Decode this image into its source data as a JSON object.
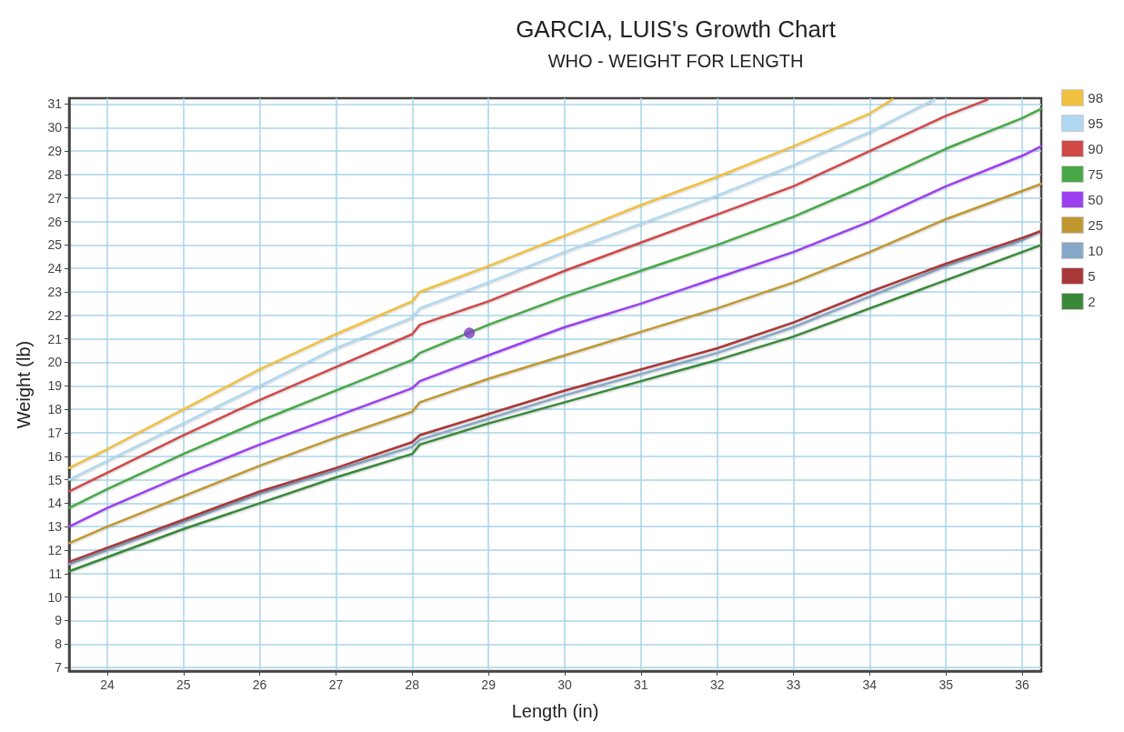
{
  "chart_data": {
    "type": "line",
    "title": "GARCIA, LUIS's Growth Chart",
    "subtitle": "WHO - WEIGHT FOR LENGTH",
    "xlabel": "Length (in)",
    "ylabel": "Weight (lb)",
    "xlim": [
      23.5,
      36.25
    ],
    "ylim": [
      6.85,
      31.25
    ],
    "xticks": [
      24,
      25,
      26,
      27,
      28,
      29,
      30,
      31,
      32,
      33,
      34,
      35,
      36
    ],
    "yticks": [
      7,
      8,
      9,
      10,
      11,
      12,
      13,
      14,
      15,
      16,
      17,
      18,
      19,
      20,
      21,
      22,
      23,
      24,
      25,
      26,
      27,
      28,
      29,
      30,
      31
    ],
    "grid": true,
    "legend": "right",
    "marker": "none",
    "line_style": "solid",
    "series": [
      {
        "name": "98",
        "color": "#f0c040",
        "x": [
          23.5,
          24,
          25,
          26,
          27,
          28,
          28.1,
          29,
          30,
          31,
          32,
          33,
          34,
          34.3
        ],
        "values": [
          15.5,
          16.3,
          18.0,
          19.7,
          21.2,
          22.6,
          23.0,
          24.1,
          25.4,
          26.7,
          27.9,
          29.2,
          30.6,
          31.2
        ]
      },
      {
        "name": "95",
        "color": "#b0d8f0",
        "x": [
          23.5,
          24,
          25,
          26,
          27,
          28,
          28.1,
          29,
          30,
          31,
          32,
          33,
          34,
          34.85
        ],
        "values": [
          15.0,
          15.8,
          17.4,
          19.0,
          20.6,
          21.9,
          22.3,
          23.4,
          24.7,
          25.9,
          27.1,
          28.4,
          29.8,
          31.2
        ]
      },
      {
        "name": "90",
        "color": "#d04848",
        "x": [
          23.5,
          24,
          25,
          26,
          27,
          28,
          28.1,
          29,
          30,
          31,
          32,
          33,
          34,
          35,
          35.55
        ],
        "values": [
          14.5,
          15.3,
          16.9,
          18.4,
          19.8,
          21.2,
          21.6,
          22.6,
          23.9,
          25.1,
          26.3,
          27.5,
          29.0,
          30.5,
          31.2
        ]
      },
      {
        "name": "75",
        "color": "#48a848",
        "x": [
          23.5,
          24,
          25,
          26,
          27,
          28,
          28.1,
          29,
          30,
          31,
          32,
          33,
          34,
          35,
          36,
          36.25
        ],
        "values": [
          13.8,
          14.6,
          16.1,
          17.5,
          18.8,
          20.1,
          20.4,
          21.6,
          22.8,
          23.9,
          25.0,
          26.2,
          27.6,
          29.1,
          30.4,
          30.8
        ]
      },
      {
        "name": "50",
        "color": "#9a40f0",
        "x": [
          23.5,
          24,
          25,
          26,
          27,
          28,
          28.1,
          29,
          30,
          31,
          32,
          33,
          34,
          35,
          36,
          36.25
        ],
        "values": [
          13.0,
          13.8,
          15.2,
          16.5,
          17.7,
          18.9,
          19.2,
          20.3,
          21.5,
          22.5,
          23.6,
          24.7,
          26.0,
          27.5,
          28.8,
          29.2
        ]
      },
      {
        "name": "25",
        "color": "#c09830",
        "x": [
          23.5,
          24,
          25,
          26,
          27,
          28,
          28.1,
          29,
          30,
          31,
          32,
          33,
          34,
          35,
          36,
          36.25
        ],
        "values": [
          12.3,
          13.0,
          14.3,
          15.6,
          16.8,
          17.9,
          18.3,
          19.3,
          20.3,
          21.3,
          22.3,
          23.4,
          24.7,
          26.1,
          27.3,
          27.6
        ]
      },
      {
        "name": "10",
        "color": "#88a8c8",
        "x": [
          23.5,
          24,
          25,
          26,
          27,
          28,
          28.1,
          29,
          30,
          31,
          32,
          33,
          34,
          35,
          36,
          36.25
        ],
        "values": [
          11.4,
          12.0,
          13.2,
          14.4,
          15.4,
          16.4,
          16.7,
          17.6,
          18.6,
          19.5,
          20.4,
          21.5,
          22.8,
          24.1,
          25.2,
          25.6
        ]
      },
      {
        "name": "5",
        "color": "#a83838",
        "x": [
          23.5,
          24,
          25,
          26,
          27,
          28,
          28.1,
          29,
          30,
          31,
          32,
          33,
          34,
          35,
          36,
          36.25
        ],
        "values": [
          11.5,
          12.1,
          13.3,
          14.5,
          15.5,
          16.6,
          16.9,
          17.8,
          18.8,
          19.7,
          20.6,
          21.7,
          23.0,
          24.2,
          25.3,
          25.6
        ]
      },
      {
        "name": "2",
        "color": "#388838",
        "x": [
          23.5,
          24,
          25,
          26,
          27,
          28,
          28.1,
          29,
          30,
          31,
          32,
          33,
          34,
          35,
          36,
          36.25
        ],
        "values": [
          11.1,
          11.7,
          12.9,
          14.0,
          15.1,
          16.1,
          16.5,
          17.4,
          18.3,
          19.2,
          20.1,
          21.1,
          22.3,
          23.5,
          24.7,
          25.0
        ]
      },
      {
        "type": "scatter",
        "color": "#7b3fc4",
        "marker": "circle",
        "x": [
          28.75
        ],
        "values": [
          21.25
        ]
      }
    ]
  }
}
